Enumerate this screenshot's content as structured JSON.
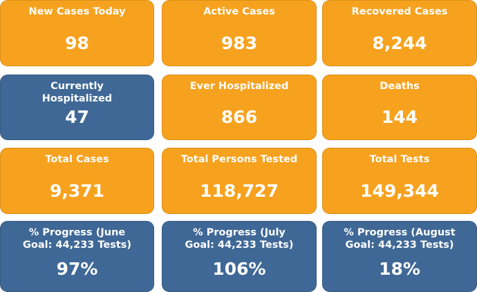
{
  "cards": [
    {
      "label": "New Cases Today",
      "value": "98",
      "color": "#f7a21e"
    },
    {
      "label": "Active Cases",
      "value": "983",
      "color": "#f7a21e"
    },
    {
      "label": "Recovered Cases",
      "value": "8,244",
      "color": "#f7a21e"
    },
    {
      "label": "Currently Hospitalized",
      "value": "47",
      "color": "#3f6896"
    },
    {
      "label": "Ever Hospitalized",
      "value": "866",
      "color": "#f7a21e"
    },
    {
      "label": "Deaths",
      "value": "144",
      "color": "#f7a21e"
    },
    {
      "label": "Total Cases",
      "value": "9,371",
      "color": "#f7a21e"
    },
    {
      "label": "Total Persons Tested",
      "value": "118,727",
      "color": "#f7a21e"
    },
    {
      "label": "Total Tests",
      "value": "149,344",
      "color": "#f7a21e"
    },
    {
      "label": "% Progress (June Goal: 44,233 Tests)",
      "value": "97%",
      "color": "#3f6896"
    },
    {
      "label": "% Progress (July Goal: 44,233 Tests)",
      "value": "106%",
      "color": "#3f6896"
    },
    {
      "label": "% Progress (August Goal: 44,233 Tests)",
      "value": "18%",
      "color": "#3f6896"
    }
  ]
}
